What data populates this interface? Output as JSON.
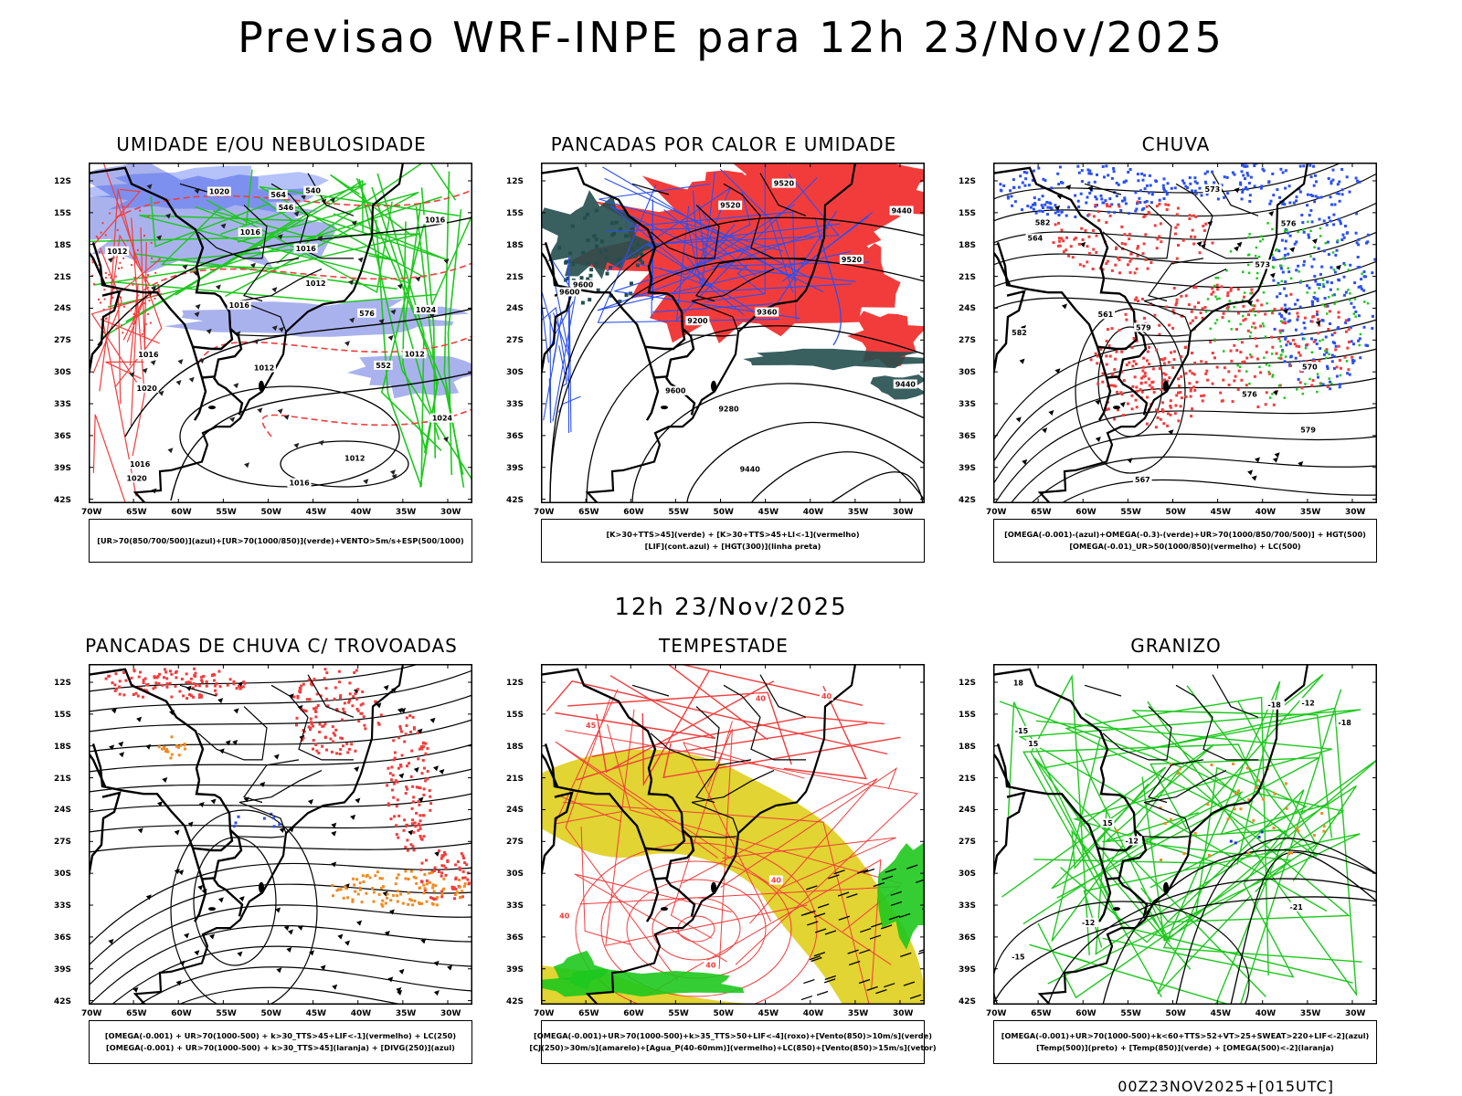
{
  "header": {
    "title": "Previsao WRF-INPE  para 12h 23/Nov/2025"
  },
  "mid_label": "12h 23/Nov/2025",
  "footer": "00Z23NOV2025+[015UTC]",
  "axes": {
    "lat_labels": [
      "12S",
      "15S",
      "18S",
      "21S",
      "24S",
      "27S",
      "30S",
      "33S",
      "36S",
      "39S",
      "42S"
    ],
    "lon_labels": [
      "70W",
      "65W",
      "60W",
      "55W",
      "50W",
      "45W",
      "40W",
      "35W",
      "30W"
    ]
  },
  "colors": {
    "red": "#f23c3c",
    "blue": "#2b50f0",
    "green": "#1ec81e",
    "lavender": "#aab2ee",
    "darkteal": "#234e4e",
    "yellow": "#e2d432",
    "orange": "#f08a20"
  },
  "panels": [
    {
      "id": "p1",
      "title": "UMIDADE E/OU NEBULOSIDADE",
      "legend": [
        "[UR>70(850/700/500)](azul)+[UR>70(1000/850)](verde)+VENTO>5m/s+ESP(500/1000)"
      ],
      "contour_labels": [
        "1012",
        "1016",
        "1020",
        "1012",
        "1016",
        "1016",
        "1012",
        "1016",
        "1024",
        "1020",
        "1024",
        "1016",
        "1016",
        "1020",
        "1012",
        "1016",
        "1012",
        "564",
        "552",
        "546",
        "540",
        "576"
      ]
    },
    {
      "id": "p2",
      "title": "PANCADAS POR CALOR E UMIDADE",
      "legend": [
        "[K>30+TTS>45](verde) + [K>30+TTS>45+LI<-1](vermelho)",
        "[LIF](cont.azul) + [HGT(300)](linha preta)"
      ],
      "contour_labels": [
        "9600",
        "9600",
        "9520",
        "9520",
        "9600",
        "9520",
        "9440",
        "9440",
        "9360",
        "9280",
        "9200",
        "9440"
      ]
    },
    {
      "id": "p3",
      "title": "CHUVA",
      "legend": [
        "[OMEGA(-0.001)-(azul)+OMEGA(-0.3)-(verde)+UR>70(1000/850/700/500)] + HGT(500)",
        "[OMEGA(-0.01)_UR>50(1000/850)(vermelho) + LC(500)"
      ],
      "contour_labels": [
        "582",
        "582",
        "579",
        "576",
        "573",
        "570",
        "567",
        "564",
        "561",
        "579",
        "576",
        "573"
      ]
    },
    {
      "id": "p4",
      "title": "PANCADAS DE CHUVA C/ TROVOADAS",
      "legend": [
        "[OMEGA(-0.001) + UR>70(1000-500) + k>30_TTS>45+LIF<-1](vermelho) + LC(250)",
        "[OMEGA(-0.001) + UR>70(1000-500) + k>30_TTS>45](laranja) + [DIVG(250)](azul)"
      ],
      "contour_labels": []
    },
    {
      "id": "p5",
      "title": "TEMPESTADE",
      "legend": [
        "[OMEGA(-0.001)+UR>70(1000-500)+k>35_TTS>50+LIF<-4](roxo)+[Vento(850)>10m/s](verde)",
        "[CJ(250)>30m/s](amarelo)+[Agua_P(40-60mm)](vermelho)+LC(850)+[Vento(850)>15m/s](vetor)"
      ],
      "contour_labels": [
        "40",
        "40",
        "40",
        "40",
        "45",
        "40"
      ]
    },
    {
      "id": "p6",
      "title": "GRANIZO",
      "legend": [
        "[OMEGA(-0.001)+UR>70(1000-500)+k<60+TTS>52+VT>25+SWEAT>220+LIF<-2](azul)",
        "[Temp(500)](preto) + [Temp(850)](verde) + [OMEGA(500)<-2](laranja)"
      ],
      "contour_labels": [
        "-15",
        "-12",
        "-18",
        "-21",
        "-18",
        "-15",
        "-12",
        "-12",
        "15",
        "18",
        "15"
      ]
    }
  ]
}
